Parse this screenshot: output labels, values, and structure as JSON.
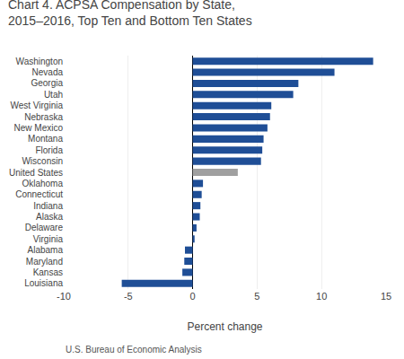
{
  "chart_data": {
    "type": "bar",
    "orientation": "horizontal",
    "title": "Chart 4. ACPSA Compensation by State,\n2015–2016, Top Ten and Bottom Ten States",
    "xlabel": "Percent change",
    "footer": "U.S. Bureau of Economic Analysis",
    "categories": [
      "Washington",
      "Nevada",
      "Georgia",
      "Utah",
      "West Virginia",
      "Nebraska",
      "New Mexico",
      "Montana",
      "Florida",
      "Wisconsin",
      "United States",
      "Oklahoma",
      "Connecticut",
      "Indiana",
      "Alaska",
      "Delaware",
      "Virginia",
      "Alabama",
      "Maryland",
      "Kansas",
      "Louisiana"
    ],
    "values": [
      14.0,
      11.0,
      8.2,
      7.8,
      6.1,
      6.0,
      5.8,
      5.5,
      5.4,
      5.3,
      3.5,
      0.8,
      0.7,
      0.6,
      0.55,
      0.3,
      0.15,
      -0.6,
      -0.65,
      -0.8,
      -5.5
    ],
    "colors": [
      "#1f4e96",
      "#1f4e96",
      "#1f4e96",
      "#1f4e96",
      "#1f4e96",
      "#1f4e96",
      "#1f4e96",
      "#1f4e96",
      "#1f4e96",
      "#1f4e96",
      "#a0a0a0",
      "#1f4e96",
      "#1f4e96",
      "#1f4e96",
      "#1f4e96",
      "#1f4e96",
      "#1f4e96",
      "#1f4e96",
      "#1f4e96",
      "#1f4e96",
      "#1f4e96"
    ],
    "xlim": [
      -10,
      15
    ],
    "xticks": [
      -10,
      -5,
      0,
      5,
      10,
      15
    ],
    "grid": true
  }
}
